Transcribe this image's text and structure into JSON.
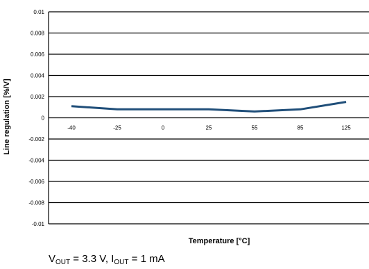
{
  "chart_data": {
    "type": "line",
    "categories": [
      "-40",
      "-25",
      "0",
      "25",
      "55",
      "85",
      "125"
    ],
    "series": [
      {
        "values": [
          0.0011,
          0.0008,
          0.0008,
          0.0008,
          0.0006,
          0.0008,
          0.0015
        ],
        "color": "#1f4e79"
      }
    ],
    "xlabel": "Temperature [°C]",
    "ylabel": "Line regulation [%/V]",
    "ylim": [
      -0.01,
      0.01
    ],
    "yticks": [
      "0.01",
      "0.008",
      "0.006",
      "0.004",
      "0.002",
      "0",
      "-0.002",
      "-0.004",
      "-0.006",
      "-0.008",
      "-0.01"
    ],
    "grid": true
  },
  "caption": {
    "v_prefix": "V",
    "v_sub": "OUT",
    "v_value": " = 3.3 V, I",
    "i_sub": "OUT",
    "i_value": " = 1 mA"
  }
}
